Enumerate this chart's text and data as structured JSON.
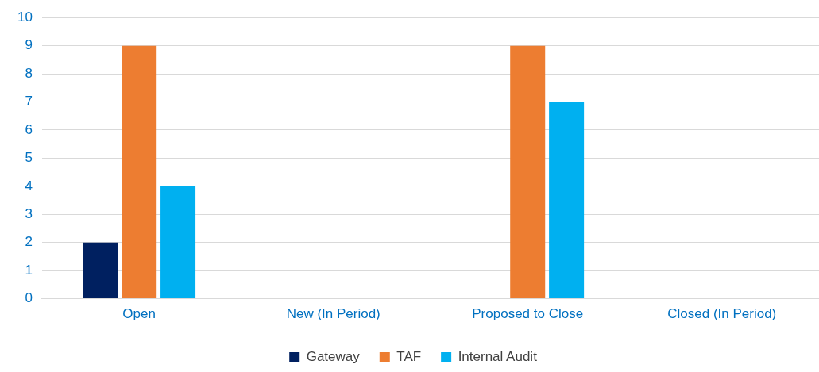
{
  "chart_data": {
    "type": "bar",
    "categories": [
      "Open",
      "New (In Period)",
      "Proposed to Close",
      "Closed (In Period)"
    ],
    "series": [
      {
        "name": "Gateway",
        "color": "#002060",
        "values": [
          2,
          0,
          0,
          0
        ]
      },
      {
        "name": "TAF",
        "color": "#ed7d31",
        "values": [
          9,
          0,
          9,
          0
        ]
      },
      {
        "name": "Internal Audit",
        "color": "#00b0f0",
        "values": [
          4,
          0,
          7,
          0
        ]
      }
    ],
    "ylim": [
      0,
      10
    ],
    "yticks": [
      0,
      1,
      2,
      3,
      4,
      5,
      6,
      7,
      8,
      9,
      10
    ],
    "grid": "y",
    "legend": "bottom"
  }
}
